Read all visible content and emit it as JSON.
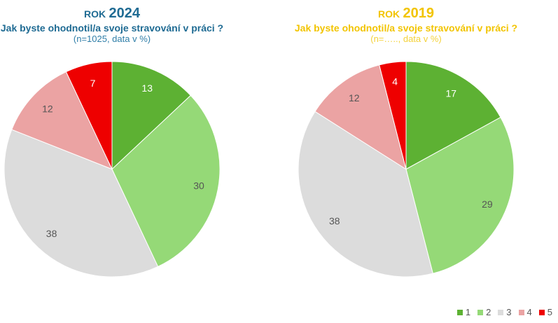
{
  "charts": [
    {
      "title_prefix": "ROK",
      "title_year": "2024",
      "question": "Jak byste ohodnotil/a svoje stravování v práci ?",
      "note": "(n=1025, data v %)",
      "title_color": "#1f6b93",
      "note_color": "#2f7ea8"
    },
    {
      "title_prefix": "ROK",
      "title_year": "2019",
      "question": "Jak byste ohodnotil/a svoje stravování v práci ?",
      "note": "(n=….., data v %)",
      "title_color": "#f2c400",
      "note_color": "#f4d23a"
    }
  ],
  "legend": [
    {
      "label": "1",
      "color": "#5db133"
    },
    {
      "label": "2",
      "color": "#95d977"
    },
    {
      "label": "3",
      "color": "#dcdcdc"
    },
    {
      "label": "4",
      "color": "#eba3a3"
    },
    {
      "label": "5",
      "color": "#ee0000"
    }
  ],
  "chart_data": [
    {
      "type": "pie",
      "title": "ROK 2024",
      "subtitle": "Jak byste ohodnotil/a svoje stravování v práci ?",
      "note": "(n=1025, data v %)",
      "categories": [
        "1",
        "2",
        "3",
        "4",
        "5"
      ],
      "values": [
        13,
        30,
        38,
        12,
        7
      ],
      "colors": [
        "#5db133",
        "#95d977",
        "#dcdcdc",
        "#eba3a3",
        "#ee0000"
      ],
      "legend_position": "bottom-right"
    },
    {
      "type": "pie",
      "title": "ROK 2019",
      "subtitle": "Jak byste ohodnotil/a svoje stravování v práci ?",
      "note": "(n=….., data v %)",
      "categories": [
        "1",
        "2",
        "3",
        "4",
        "5"
      ],
      "values": [
        17,
        29,
        38,
        12,
        4
      ],
      "colors": [
        "#5db133",
        "#95d977",
        "#dcdcdc",
        "#eba3a3",
        "#ee0000"
      ],
      "legend_position": "bottom-right"
    }
  ]
}
